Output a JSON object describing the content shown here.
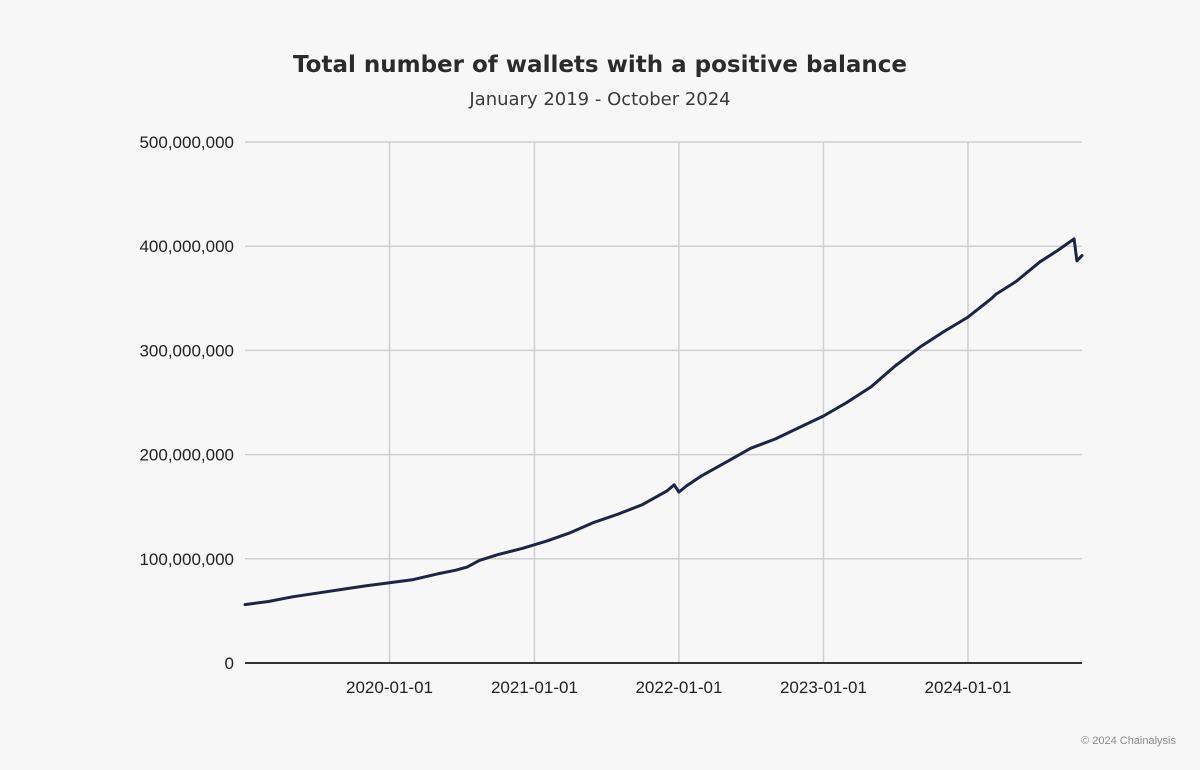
{
  "chart_data": {
    "type": "line",
    "title": "Total number of wallets with a positive balance",
    "subtitle": "January 2019 - October 2024",
    "xlabel": "",
    "ylabel": "",
    "xlim": [
      "2019-01-01",
      "2024-10-15"
    ],
    "ylim": [
      0,
      500000000
    ],
    "y_ticks": [
      {
        "value": 0,
        "label": "0"
      },
      {
        "value": 100000000,
        "label": "100,000,000"
      },
      {
        "value": 200000000,
        "label": "200,000,000"
      },
      {
        "value": 300000000,
        "label": "300,000,000"
      },
      {
        "value": 400000000,
        "label": "400,000,000"
      },
      {
        "value": 500000000,
        "label": "500,000,000"
      }
    ],
    "x_ticks": [
      "2020-01-01",
      "2021-01-01",
      "2022-01-01",
      "2023-01-01",
      "2024-01-01"
    ],
    "grid": true,
    "legend": "none",
    "line_color": "#1c2447",
    "series": [
      {
        "x": [
          "2019-01-01",
          "2019-03-01",
          "2019-05-01",
          "2019-07-01",
          "2019-09-01",
          "2019-11-01",
          "2020-01-01",
          "2020-03-01",
          "2020-05-01",
          "2020-06-15",
          "2020-07-15",
          "2020-08-15",
          "2020-10-01",
          "2020-12-01",
          "2021-02-01",
          "2021-04-01",
          "2021-06-01",
          "2021-08-01",
          "2021-10-01",
          "2021-12-01",
          "2021-12-20",
          "2022-01-01",
          "2022-01-20",
          "2022-03-01",
          "2022-05-01",
          "2022-07-01",
          "2022-09-01",
          "2022-11-01",
          "2023-01-01",
          "2023-03-01",
          "2023-05-01",
          "2023-07-01",
          "2023-09-01",
          "2023-11-01",
          "2024-01-01",
          "2024-03-01",
          "2024-03-12",
          "2024-05-01",
          "2024-07-01",
          "2024-08-15",
          "2024-09-25",
          "2024-10-02",
          "2024-10-15"
        ],
        "values": [
          56000000,
          59000000,
          63500000,
          67000000,
          70500000,
          74000000,
          77000000,
          80000000,
          85500000,
          89000000,
          92000000,
          98500000,
          104000000,
          110000000,
          117000000,
          125000000,
          135000000,
          143000000,
          152000000,
          165000000,
          171000000,
          164000000,
          170000000,
          180000000,
          193000000,
          206000000,
          215000000,
          226000000,
          237000000,
          250000000,
          265000000,
          285000000,
          303000000,
          318000000,
          332000000,
          350000000,
          354000000,
          366000000,
          385000000,
          396000000,
          407000000,
          386000000,
          391000000
        ]
      }
    ]
  },
  "footer": {
    "copyright": "© 2024 Chainalysis"
  }
}
